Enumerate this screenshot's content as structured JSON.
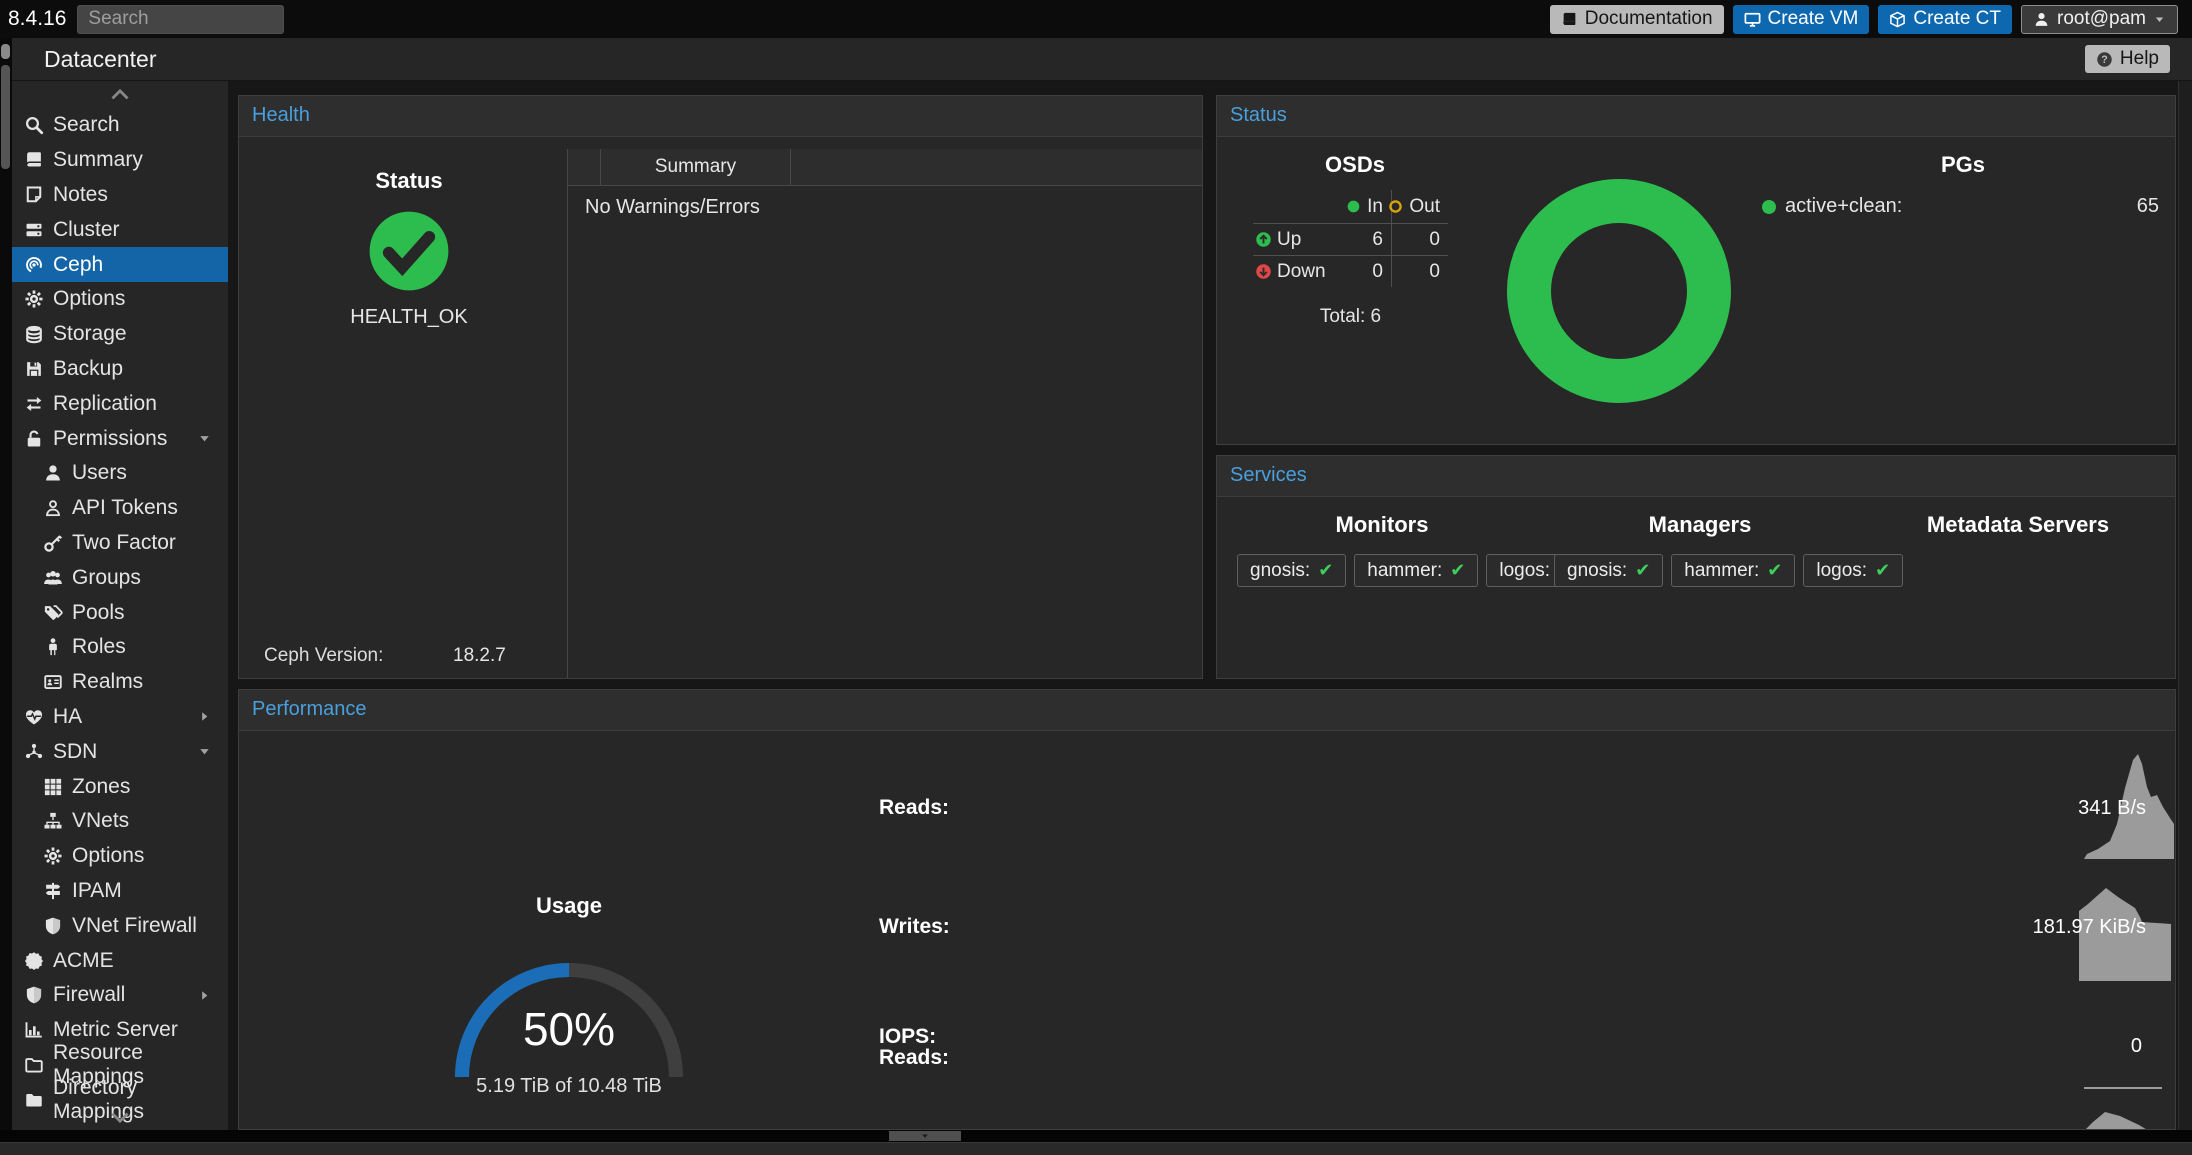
{
  "topbar": {
    "version": "8.4.16",
    "search_placeholder": "Search",
    "buttons": {
      "documentation": "Documentation",
      "create_vm": "Create VM",
      "create_ct": "Create CT",
      "user_menu": "root@pam"
    }
  },
  "breadcrumb": {
    "title": "Datacenter",
    "help_label": "Help"
  },
  "sidebar": {
    "items": [
      {
        "icon": "search",
        "label": "Search"
      },
      {
        "icon": "book",
        "label": "Summary"
      },
      {
        "icon": "note",
        "label": "Notes"
      },
      {
        "icon": "server",
        "label": "Cluster"
      },
      {
        "icon": "ceph",
        "label": "Ceph",
        "selected": true
      },
      {
        "icon": "gear",
        "label": "Options"
      },
      {
        "icon": "database",
        "label": "Storage"
      },
      {
        "icon": "floppy",
        "label": "Backup"
      },
      {
        "icon": "retweet",
        "label": "Replication"
      },
      {
        "icon": "unlock",
        "label": "Permissions",
        "caret": "down"
      },
      {
        "icon": "user",
        "label": "Users",
        "indent": true
      },
      {
        "icon": "user-o",
        "label": "API Tokens",
        "indent": true
      },
      {
        "icon": "key",
        "label": "Two Factor",
        "indent": true
      },
      {
        "icon": "users",
        "label": "Groups",
        "indent": true
      },
      {
        "icon": "tags",
        "label": "Pools",
        "indent": true
      },
      {
        "icon": "person",
        "label": "Roles",
        "indent": true
      },
      {
        "icon": "id-card",
        "label": "Realms",
        "indent": true
      },
      {
        "icon": "heartbeat",
        "label": "HA",
        "caret": "right"
      },
      {
        "icon": "network",
        "label": "SDN",
        "caret": "down"
      },
      {
        "icon": "grid",
        "label": "Zones",
        "indent": true
      },
      {
        "icon": "sitemap",
        "label": "VNets",
        "indent": true
      },
      {
        "icon": "gear",
        "label": "Options",
        "indent": true
      },
      {
        "icon": "signpost",
        "label": "IPAM",
        "indent": true
      },
      {
        "icon": "shield",
        "label": "VNet Firewall",
        "indent": true
      },
      {
        "icon": "badge",
        "label": "ACME"
      },
      {
        "icon": "shield",
        "label": "Firewall",
        "caret": "right"
      },
      {
        "icon": "chart",
        "label": "Metric Server"
      },
      {
        "icon": "folder-o",
        "label": "Resource Mappings"
      },
      {
        "icon": "folder",
        "label": "Directory Mappings"
      }
    ]
  },
  "panels": {
    "health": {
      "title": "Health",
      "status_heading": "Status",
      "health_value": "HEALTH_OK",
      "version_label": "Ceph Version:",
      "version_value": "18.2.7",
      "summary_col": "Summary",
      "summary_row": "No Warnings/Errors"
    },
    "status": {
      "title": "Status",
      "osds": {
        "heading": "OSDs",
        "in_label": "In",
        "out_label": "Out",
        "up_label": "Up",
        "down_label": "Down",
        "up_in": "6",
        "up_out": "0",
        "down_in": "0",
        "down_out": "0",
        "total": "Total: 6"
      },
      "pgs": {
        "heading": "PGs",
        "legend_label": "active+clean:",
        "legend_value": "65",
        "legend_color": "#2dbd4e"
      }
    },
    "services": {
      "title": "Services",
      "groups": [
        {
          "heading": "Monitors",
          "badges": [
            "gnosis:",
            "hammer:",
            "logos:"
          ]
        },
        {
          "heading": "Managers",
          "badges": [
            "gnosis:",
            "hammer:",
            "logos:"
          ]
        },
        {
          "heading": "Metadata Servers",
          "badges": []
        }
      ]
    },
    "performance": {
      "title": "Performance",
      "usage": {
        "heading": "Usage",
        "percent": "50%",
        "fraction": 0.5,
        "detail": "5.19 TiB of 10.48 TiB",
        "accent": "#1a6db6"
      },
      "reads_label": "Reads:",
      "reads_value": "341 B/s",
      "writes_label": "Writes:",
      "writes_value": "181.97 KiB/s",
      "iops_label_1": "IOPS:",
      "iops_label_2": "Reads:",
      "iops_reads_value": "0"
    }
  },
  "colors": {
    "ok_green": "#2dbd4e",
    "warn_yellow": "#d9a509",
    "err_red": "#e04848",
    "selection_blue": "#1465a8",
    "gauge_blue": "#1a6db6",
    "panel_title_blue": "#4a9fdd"
  }
}
